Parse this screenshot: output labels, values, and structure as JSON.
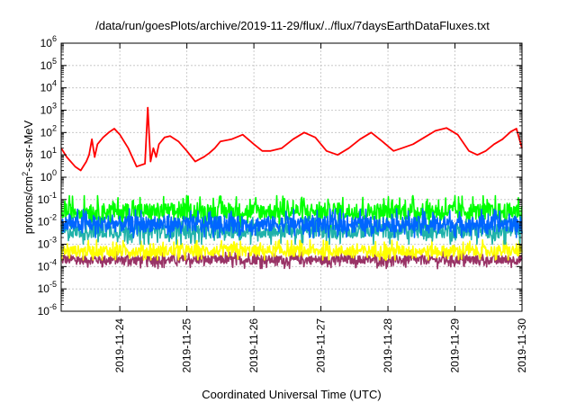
{
  "chart_data": {
    "type": "line",
    "title": "/data/run/goesPlots/archive/2019-11-29/flux/../flux/7daysEarthDataFluxes.txt",
    "xlabel": "Coordinated Universal Time (UTC)",
    "ylabel": {
      "prefix": "protons/cm",
      "sup": "2",
      "suffix": "-s-sr-MeV"
    },
    "y_scale": "log",
    "ylim": [
      1e-06,
      1000000.0
    ],
    "y_ticks": [
      {
        "value": 1e-06,
        "base": "10",
        "exp": "-6"
      },
      {
        "value": 1e-05,
        "base": "10",
        "exp": "-5"
      },
      {
        "value": 0.0001,
        "base": "10",
        "exp": "-4"
      },
      {
        "value": 0.001,
        "base": "10",
        "exp": "-3"
      },
      {
        "value": 0.01,
        "base": "10",
        "exp": "-2"
      },
      {
        "value": 0.1,
        "base": "10",
        "exp": "-1"
      },
      {
        "value": 1,
        "base": "10",
        "exp": "0"
      },
      {
        "value": 10.0,
        "base": "10",
        "exp": "1"
      },
      {
        "value": 100.0,
        "base": "10",
        "exp": "2"
      },
      {
        "value": 1000.0,
        "base": "10",
        "exp": "3"
      },
      {
        "value": 10000.0,
        "base": "10",
        "exp": "4"
      },
      {
        "value": 100000.0,
        "base": "10",
        "exp": "5"
      },
      {
        "value": 1000000.0,
        "base": "10",
        "exp": "6"
      }
    ],
    "xlim": [
      "2019-11-23T03:00",
      "2019-11-30T00:00"
    ],
    "x_ticks": [
      "2019-11-24",
      "2019-11-25",
      "2019-11-26",
      "2019-11-27",
      "2019-11-28",
      "2019-11-29",
      "2019-11-30"
    ],
    "grid": true,
    "legend": "none",
    "series": [
      {
        "color": "#ff0000",
        "x": [
          "2019-11-23T03:00",
          "2019-11-23T05:00",
          "2019-11-23T08:00",
          "2019-11-23T10:00",
          "2019-11-23T12:00",
          "2019-11-23T13:00",
          "2019-11-23T14:00",
          "2019-11-23T15:00",
          "2019-11-23T16:00",
          "2019-11-23T18:00",
          "2019-11-23T20:00",
          "2019-11-23T22:00",
          "2019-11-24T00:00",
          "2019-11-24T03:00",
          "2019-11-24T06:00",
          "2019-11-24T09:00",
          "2019-11-24T10:00",
          "2019-11-24T11:00",
          "2019-11-24T12:00",
          "2019-11-24T13:00",
          "2019-11-24T14:00",
          "2019-11-24T16:00",
          "2019-11-24T18:00",
          "2019-11-24T21:00",
          "2019-11-25T00:00",
          "2019-11-25T03:00",
          "2019-11-25T06:00",
          "2019-11-25T08:00",
          "2019-11-25T10:00",
          "2019-11-25T12:00",
          "2019-11-25T16:00",
          "2019-11-25T20:00",
          "2019-11-26T00:00",
          "2019-11-26T03:00",
          "2019-11-26T06:00",
          "2019-11-26T10:00",
          "2019-11-26T14:00",
          "2019-11-26T18:00",
          "2019-11-26T22:00",
          "2019-11-27T02:00",
          "2019-11-27T06:00",
          "2019-11-27T10:00",
          "2019-11-27T14:00",
          "2019-11-27T18:00",
          "2019-11-27T22:00",
          "2019-11-28T02:00",
          "2019-11-28T05:00",
          "2019-11-28T09:00",
          "2019-11-28T13:00",
          "2019-11-28T17:00",
          "2019-11-28T21:00",
          "2019-11-29T01:00",
          "2019-11-29T05:00",
          "2019-11-29T08:00",
          "2019-11-29T11:00",
          "2019-11-29T14:00",
          "2019-11-29T17:00",
          "2019-11-29T20:00",
          "2019-11-29T22:00",
          "2019-11-30T00:00"
        ],
        "y": [
          20,
          8,
          3,
          2,
          5,
          10,
          50,
          8,
          30,
          60,
          100,
          150,
          80,
          20,
          3,
          4,
          1300,
          5,
          20,
          8,
          30,
          60,
          70,
          40,
          15,
          5,
          8,
          12,
          20,
          40,
          50,
          80,
          30,
          15,
          15,
          20,
          50,
          100,
          60,
          15,
          10,
          20,
          50,
          100,
          40,
          15,
          20,
          30,
          60,
          120,
          160,
          80,
          15,
          10,
          15,
          30,
          50,
          110,
          150,
          20
        ]
      },
      {
        "color": "#00ff00",
        "x": [
          "2019-11-23T03:00",
          "2019-11-30T00:00"
        ],
        "y": [
          0.03,
          0.03
        ],
        "y_range": [
          0.005,
          0.15
        ]
      },
      {
        "color": "#0066ff",
        "x": [
          "2019-11-23T03:00",
          "2019-11-30T00:00"
        ],
        "y": [
          0.008,
          0.008
        ],
        "y_range": [
          0.002,
          0.05
        ]
      },
      {
        "color": "#20b2aa",
        "x": [
          "2019-11-23T03:00",
          "2019-11-30T00:00"
        ],
        "y": [
          0.004,
          0.004
        ],
        "y_range": [
          0.001,
          0.02
        ]
      },
      {
        "color": "#ffff00",
        "x": [
          "2019-11-23T03:00",
          "2019-11-30T00:00"
        ],
        "y": [
          0.0005,
          0.0005
        ],
        "y_range": [
          0.0002,
          0.002
        ]
      },
      {
        "color": "#993366",
        "x": [
          "2019-11-23T03:00",
          "2019-11-30T00:00"
        ],
        "y": [
          0.0002,
          0.0002
        ],
        "y_range": [
          8e-05,
          0.0005
        ]
      }
    ],
    "colors": {
      "grid": "#c0c0c0",
      "axis": "#000000"
    }
  }
}
